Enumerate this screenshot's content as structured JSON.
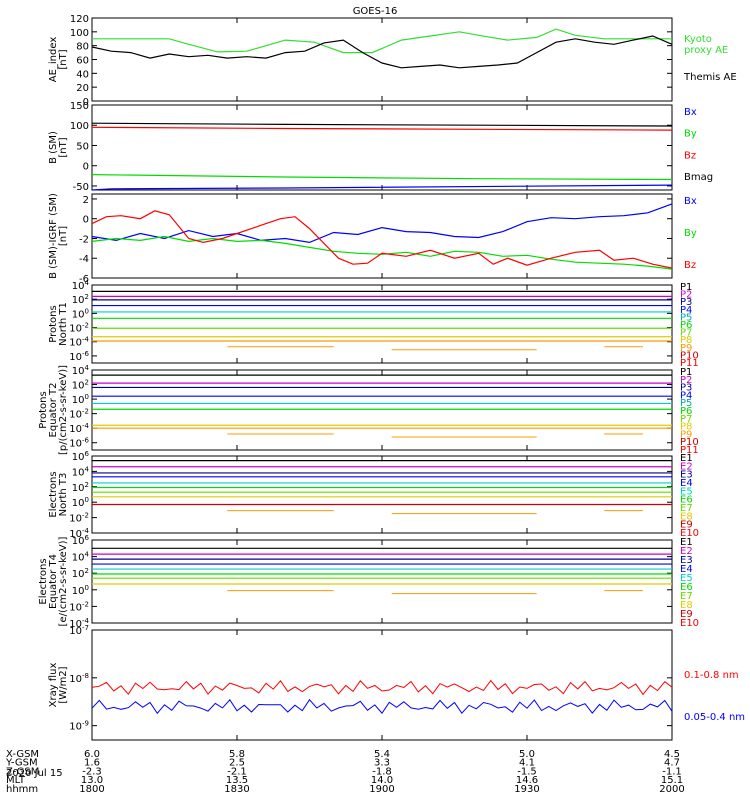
{
  "title": "GOES-16",
  "date_label": "2020 Jul 15",
  "colors": {
    "black": "#000000",
    "red": "#ff0000",
    "green": "#00dd00",
    "blue": "#0000ff",
    "kyoto": "#33dd33",
    "magenta": "#cc00cc",
    "navy": "#000099",
    "teal": "#00aaaa",
    "cyan": "#00cccc",
    "lime": "#66dd00",
    "yellow": "#ddcc00",
    "orange": "#ff9900",
    "darkred": "#cc0000",
    "maroon": "#990000"
  },
  "xaxis": {
    "rows": [
      {
        "label": "X-GSM",
        "values": [
          "6.0",
          "5.8",
          "5.4",
          "5.0",
          "4.5"
        ]
      },
      {
        "label": "Y-GSM",
        "values": [
          "1.6",
          "2.5",
          "3.3",
          "4.1",
          "4.7"
        ]
      },
      {
        "label": "Z-GSM",
        "values": [
          "-2.3",
          "-2.1",
          "-1.8",
          "-1.5",
          "-1.1"
        ]
      },
      {
        "label": "MLT",
        "values": [
          "13.0",
          "13.5",
          "14.0",
          "14.6",
          "15.1"
        ]
      },
      {
        "label": "hhmm",
        "values": [
          "1800",
          "1830",
          "1900",
          "1930",
          "2000"
        ]
      }
    ],
    "time_minutes": [
      1080,
      1110,
      1140,
      1170,
      1200
    ]
  },
  "chart_data": [
    {
      "type": "line",
      "ylabel": "AE_index\n[nT]",
      "ylim": [
        0,
        120
      ],
      "yticks": [
        "0",
        "20",
        "40",
        "60",
        "80",
        "100",
        "120"
      ],
      "x_range": [
        1080,
        1200
      ],
      "series": [
        {
          "name": "Kyoto\nproxy AE",
          "color_key": "kyoto",
          "x": [
            1080,
            1090,
            1096,
            1100,
            1106,
            1112,
            1116,
            1120,
            1126,
            1132,
            1138,
            1144,
            1150,
            1156,
            1160,
            1166,
            1172,
            1176,
            1180,
            1186,
            1192,
            1196,
            1200
          ],
          "y": [
            90,
            90,
            90,
            82,
            71,
            72,
            80,
            88,
            85,
            70,
            70,
            88,
            94,
            100,
            95,
            88,
            92,
            104,
            95,
            90,
            90,
            90,
            90
          ]
        },
        {
          "name": "Themis AE",
          "color_key": "black",
          "x": [
            1080,
            1084,
            1088,
            1092,
            1096,
            1100,
            1104,
            1108,
            1112,
            1116,
            1120,
            1124,
            1128,
            1132,
            1136,
            1140,
            1144,
            1148,
            1152,
            1156,
            1160,
            1164,
            1168,
            1172,
            1176,
            1180,
            1184,
            1188,
            1192,
            1196,
            1200
          ],
          "y": [
            78,
            72,
            70,
            62,
            68,
            64,
            66,
            62,
            64,
            62,
            70,
            72,
            84,
            88,
            70,
            55,
            48,
            50,
            52,
            48,
            50,
            52,
            55,
            70,
            85,
            90,
            85,
            82,
            88,
            94,
            82
          ]
        }
      ]
    },
    {
      "type": "line",
      "ylabel": "B (SM)\n[nT]",
      "ylim": [
        -60,
        150
      ],
      "yticks": [
        "-50",
        "0",
        "50",
        "100",
        "150"
      ],
      "x_range": [
        1080,
        1200
      ],
      "series": [
        {
          "name": "Bx",
          "color_key": "blue",
          "x": [
            1080,
            1084,
            1120,
            1200
          ],
          "y": [
            -60,
            -57,
            -55,
            -48
          ]
        },
        {
          "name": "By",
          "color_key": "green",
          "x": [
            1080,
            1120,
            1160,
            1200
          ],
          "y": [
            -22,
            -28,
            -32,
            -34
          ]
        },
        {
          "name": "Bz",
          "color_key": "red",
          "x": [
            1080,
            1120,
            1160,
            1200
          ],
          "y": [
            95,
            92,
            90,
            88
          ]
        },
        {
          "name": "Bmag",
          "color_key": "black",
          "x": [
            1080,
            1120,
            1160,
            1200
          ],
          "y": [
            105,
            102,
            100,
            98
          ]
        }
      ]
    },
    {
      "type": "line",
      "ylabel": "B (SM)-IGRF (SM)\n[nT]",
      "ylim": [
        -6,
        2.5
      ],
      "yticks": [
        "-6",
        "-4",
        "-2",
        "0",
        "2"
      ],
      "x_range": [
        1080,
        1200
      ],
      "series": [
        {
          "name": "Bx",
          "color_key": "blue",
          "x": [
            1080,
            1085,
            1090,
            1095,
            1100,
            1105,
            1110,
            1115,
            1120,
            1125,
            1130,
            1135,
            1140,
            1145,
            1150,
            1155,
            1160,
            1165,
            1170,
            1175,
            1180,
            1185,
            1190,
            1195,
            1200
          ],
          "y": [
            -1.8,
            -2.2,
            -1.5,
            -2.0,
            -1.2,
            -1.8,
            -1.5,
            -2.2,
            -2.0,
            -2.4,
            -1.4,
            -1.6,
            -0.9,
            -1.3,
            -1.4,
            -1.8,
            -1.9,
            -1.3,
            -0.3,
            0.1,
            0.0,
            0.2,
            0.3,
            0.6,
            1.5
          ]
        },
        {
          "name": "By",
          "color_key": "green",
          "x": [
            1080,
            1085,
            1090,
            1095,
            1100,
            1105,
            1110,
            1115,
            1120,
            1125,
            1130,
            1135,
            1140,
            1145,
            1150,
            1155,
            1160,
            1165,
            1170,
            1175,
            1180,
            1185,
            1190,
            1195,
            1200
          ],
          "y": [
            -2.3,
            -2.0,
            -2.2,
            -1.8,
            -2.3,
            -2.0,
            -2.3,
            -2.2,
            -2.5,
            -2.9,
            -3.3,
            -3.5,
            -3.6,
            -3.4,
            -3.8,
            -3.3,
            -3.4,
            -3.8,
            -3.7,
            -4.1,
            -4.4,
            -4.5,
            -4.6,
            -4.8,
            -5.1
          ]
        },
        {
          "name": "Bz",
          "color_key": "red",
          "x": [
            1080,
            1083,
            1086,
            1090,
            1093,
            1096,
            1100,
            1103,
            1107,
            1110,
            1113,
            1116,
            1119,
            1122,
            1125,
            1128,
            1131,
            1134,
            1137,
            1140,
            1145,
            1150,
            1155,
            1160,
            1163,
            1166,
            1170,
            1175,
            1180,
            1185,
            1188,
            1192,
            1196,
            1200
          ],
          "y": [
            -0.5,
            0.2,
            0.3,
            0.0,
            0.8,
            0.4,
            -2.0,
            -2.4,
            -2.0,
            -1.5,
            -1.0,
            -0.5,
            0.0,
            0.2,
            -1.0,
            -2.5,
            -4.0,
            -4.6,
            -4.5,
            -3.5,
            -3.8,
            -3.2,
            -4.0,
            -3.5,
            -4.6,
            -4.0,
            -4.7,
            -4.0,
            -3.4,
            -3.2,
            -4.2,
            -4.0,
            -4.6,
            -5.0
          ]
        }
      ]
    },
    {
      "type": "line",
      "ylabel": "Protons\nNorth T1",
      "log_range": [
        -7,
        4
      ],
      "yticks": [
        "10^4",
        "10^2",
        "10^0",
        "10^-2",
        "10^-4",
        "10^-6"
      ],
      "x_range": [
        1080,
        1200
      ],
      "legend": [
        "P1",
        "P2",
        "P3",
        "P4",
        "P5",
        "P6",
        "P7",
        "P8",
        "P9",
        "P10",
        "P11"
      ],
      "legend_colors": [
        "black",
        "magenta",
        "navy",
        "blue",
        "teal",
        "green",
        "lime",
        "yellow",
        "orange",
        "darkred",
        "red"
      ],
      "levels": [
        3.1,
        2.4,
        1.9,
        1.1,
        0.2,
        -0.7,
        -2.1,
        -3.3,
        -3.9
      ],
      "level_colors": [
        "black",
        "magenta",
        "navy",
        "blue",
        "cyan",
        "green",
        "lime",
        "yellow",
        "orange"
      ]
    },
    {
      "type": "line",
      "ylabel": "Protons\nEquator T2\n[p/(cm2-s-sr-keV)]",
      "log_range": [
        -7,
        4
      ],
      "yticks": [
        "10^4",
        "10^2",
        "10^0",
        "10^-2",
        "10^-4",
        "10^-6"
      ],
      "x_range": [
        1080,
        1200
      ],
      "legend": [
        "P1",
        "P2",
        "P3",
        "P4",
        "P5",
        "P6",
        "P7",
        "P8",
        "P9",
        "P10",
        "P11"
      ],
      "legend_colors": [
        "black",
        "magenta",
        "navy",
        "blue",
        "teal",
        "green",
        "lime",
        "yellow",
        "orange",
        "darkred",
        "red"
      ],
      "levels": [
        3.3,
        2.2,
        1.6,
        0.4,
        -0.6,
        -1.4,
        -3.6,
        -4.0
      ],
      "level_colors": [
        "black",
        "magenta",
        "navy",
        "blue",
        "cyan",
        "green",
        "yellow",
        "orange"
      ]
    },
    {
      "type": "line",
      "ylabel": "Electrons\nNorth T3",
      "log_range": [
        -4,
        6
      ],
      "yticks": [
        "10^6",
        "10^4",
        "10^2",
        "10^0",
        "10^-2",
        "10^-4"
      ],
      "x_range": [
        1080,
        1200
      ],
      "legend": [
        "E1",
        "E2",
        "E3",
        "E4",
        "E5",
        "E6",
        "E7",
        "E8",
        "E9",
        "E10"
      ],
      "legend_colors": [
        "black",
        "magenta",
        "navy",
        "blue",
        "cyan",
        "green",
        "lime",
        "yellow",
        "darkred",
        "red"
      ],
      "levels": [
        5.4,
        4.6,
        3.8,
        3.3,
        2.5,
        1.9,
        1.3,
        0.7,
        -0.3
      ],
      "level_colors": [
        "black",
        "magenta",
        "navy",
        "blue",
        "cyan",
        "green",
        "lime",
        "yellow",
        "darkred"
      ]
    },
    {
      "type": "line",
      "ylabel": "Electrons\nEquator T4\n[e/(cm2-s-sr-keV)]",
      "log_range": [
        -4,
        6
      ],
      "yticks": [
        "10^6",
        "10^4",
        "10^2",
        "10^0",
        "10^-2",
        "10^-4"
      ],
      "x_range": [
        1080,
        1200
      ],
      "legend": [
        "E1",
        "E2",
        "E3",
        "E4",
        "E5",
        "E6",
        "E7",
        "E8",
        "E9",
        "E10"
      ],
      "legend_colors": [
        "black",
        "magenta",
        "navy",
        "blue",
        "cyan",
        "green",
        "lime",
        "yellow",
        "darkred",
        "red"
      ],
      "levels": [
        5.0,
        4.3,
        3.7,
        3.1,
        2.5,
        1.9,
        1.4,
        0.7
      ],
      "level_colors": [
        "black",
        "magenta",
        "navy",
        "blue",
        "cyan",
        "green",
        "lime",
        "yellow"
      ]
    },
    {
      "type": "line",
      "ylabel": "Xray flux\n[W/m2]",
      "log_range": [
        -9.3,
        -7
      ],
      "yticks": [
        "10^-7",
        "10^-8",
        "10^-9"
      ],
      "x_range": [
        1080,
        1200
      ],
      "series": [
        {
          "name": "0.1-0.8 nm",
          "color_key": "red",
          "level": -8.2
        },
        {
          "name": "0.05-0.4 nm",
          "color_key": "blue",
          "level": -8.6
        }
      ]
    }
  ]
}
